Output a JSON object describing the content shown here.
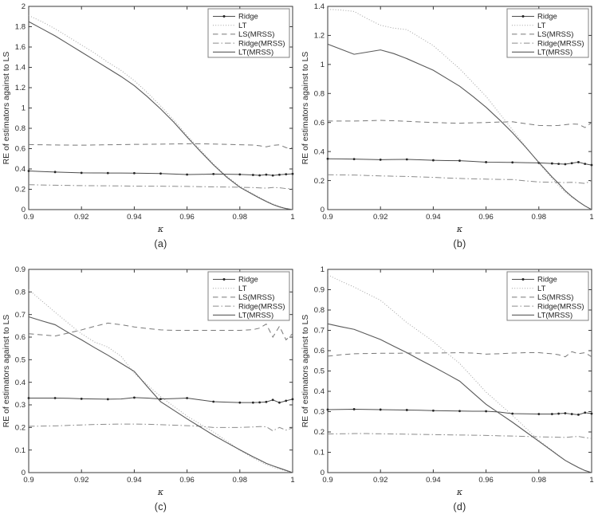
{
  "figure": {
    "background": "#ffffff",
    "axis_color": "#3a3a3a",
    "text_color": "#2b2b2b",
    "legend_border_color": "#808080",
    "legend_background": "#ffffff"
  },
  "chart_data": [
    {
      "id": "a",
      "caption": "(a)",
      "type": "line",
      "title": "",
      "xlabel": "κ",
      "ylabel": "RE of estimators against to LS",
      "xlim": [
        0.9,
        1.0
      ],
      "ylim": [
        0,
        2
      ],
      "xticks": [
        0.9,
        0.92,
        0.94,
        0.96,
        0.98,
        1
      ],
      "yticks": [
        0,
        0.2,
        0.4,
        0.6,
        0.8,
        1,
        1.2,
        1.4,
        1.6,
        1.8,
        2
      ],
      "grid": false,
      "legend_position": "top-right",
      "x": [
        0.9,
        0.905,
        0.91,
        0.915,
        0.92,
        0.925,
        0.93,
        0.935,
        0.94,
        0.945,
        0.95,
        0.955,
        0.96,
        0.965,
        0.97,
        0.975,
        0.98,
        0.985,
        0.9875,
        0.99,
        0.9925,
        0.995,
        0.9975,
        1
      ],
      "series": [
        {
          "name": "Ridge",
          "style": "solid-marker",
          "color": "#4d4d4d",
          "marker_color": "#262626",
          "values": [
            0.38,
            0.375,
            0.37,
            0.366,
            0.362,
            0.361,
            0.36,
            0.36,
            0.359,
            0.357,
            0.355,
            0.35,
            0.345,
            0.347,
            0.35,
            0.348,
            0.346,
            0.341,
            0.337,
            0.344,
            0.336,
            0.343,
            0.348,
            0.352
          ]
        },
        {
          "name": "LT",
          "style": "dotted",
          "color": "#a3a3a3",
          "values": [
            1.91,
            1.85,
            1.78,
            1.7,
            1.62,
            1.54,
            1.45,
            1.37,
            1.27,
            1.15,
            1.02,
            0.88,
            0.73,
            0.59,
            0.45,
            0.33,
            0.23,
            0.155,
            0.12,
            0.085,
            0.055,
            0.03,
            0.012,
            0.0
          ]
        },
        {
          "name": "LS(MRSS)",
          "style": "dashed",
          "color": "#787878",
          "values": [
            0.64,
            0.638,
            0.636,
            0.635,
            0.634,
            0.636,
            0.638,
            0.64,
            0.642,
            0.643,
            0.644,
            0.646,
            0.648,
            0.648,
            0.645,
            0.642,
            0.638,
            0.635,
            0.628,
            0.618,
            0.632,
            0.638,
            0.61,
            0.605
          ]
        },
        {
          "name": "Ridge(MRSS)",
          "style": "dashdot",
          "color": "#8c8c8c",
          "values": [
            0.245,
            0.242,
            0.24,
            0.238,
            0.236,
            0.235,
            0.234,
            0.233,
            0.231,
            0.23,
            0.23,
            0.229,
            0.228,
            0.226,
            0.224,
            0.222,
            0.22,
            0.217,
            0.214,
            0.211,
            0.218,
            0.215,
            0.207,
            0.204
          ]
        },
        {
          "name": "LT(MRSS)",
          "style": "solid",
          "color": "#595959",
          "values": [
            1.85,
            1.78,
            1.71,
            1.63,
            1.55,
            1.47,
            1.39,
            1.31,
            1.22,
            1.11,
            0.99,
            0.86,
            0.715,
            0.575,
            0.44,
            0.32,
            0.22,
            0.148,
            0.113,
            0.08,
            0.05,
            0.027,
            0.01,
            0.0
          ]
        }
      ]
    },
    {
      "id": "b",
      "caption": "(b)",
      "type": "line",
      "title": "",
      "xlabel": "κ",
      "ylabel": "RE of estimators against to LS",
      "xlim": [
        0.9,
        1.0
      ],
      "ylim": [
        0,
        1.4
      ],
      "xticks": [
        0.9,
        0.92,
        0.94,
        0.96,
        0.98,
        1
      ],
      "yticks": [
        0,
        0.2,
        0.4,
        0.6,
        0.8,
        1,
        1.2,
        1.4
      ],
      "grid": false,
      "legend_position": "top-right",
      "x": [
        0.9,
        0.905,
        0.91,
        0.915,
        0.92,
        0.925,
        0.93,
        0.935,
        0.94,
        0.945,
        0.95,
        0.955,
        0.96,
        0.965,
        0.97,
        0.975,
        0.98,
        0.985,
        0.9875,
        0.99,
        0.9925,
        0.995,
        0.9975,
        1
      ],
      "series": [
        {
          "name": "Ridge",
          "style": "solid-marker",
          "color": "#4d4d4d",
          "marker_color": "#262626",
          "values": [
            0.35,
            0.349,
            0.348,
            0.346,
            0.344,
            0.345,
            0.346,
            0.343,
            0.34,
            0.338,
            0.337,
            0.332,
            0.327,
            0.326,
            0.325,
            0.323,
            0.322,
            0.318,
            0.315,
            0.313,
            0.32,
            0.327,
            0.315,
            0.307
          ]
        },
        {
          "name": "LT",
          "style": "dotted",
          "color": "#a3a3a3",
          "values": [
            1.38,
            1.375,
            1.365,
            1.315,
            1.27,
            1.25,
            1.24,
            1.185,
            1.13,
            1.05,
            0.97,
            0.875,
            0.78,
            0.665,
            0.55,
            0.435,
            0.32,
            0.215,
            0.165,
            0.12,
            0.085,
            0.055,
            0.025,
            0.0
          ]
        },
        {
          "name": "LS(MRSS)",
          "style": "dashed",
          "color": "#787878",
          "values": [
            0.61,
            0.61,
            0.61,
            0.612,
            0.615,
            0.612,
            0.608,
            0.604,
            0.6,
            0.597,
            0.595,
            0.598,
            0.6,
            0.603,
            0.605,
            0.592,
            0.58,
            0.578,
            0.58,
            0.585,
            0.59,
            0.588,
            0.565,
            0.6
          ]
        },
        {
          "name": "Ridge(MRSS)",
          "style": "dashdot",
          "color": "#8c8c8c",
          "values": [
            0.24,
            0.239,
            0.238,
            0.235,
            0.232,
            0.23,
            0.228,
            0.225,
            0.222,
            0.218,
            0.215,
            0.212,
            0.21,
            0.208,
            0.207,
            0.198,
            0.19,
            0.188,
            0.187,
            0.186,
            0.188,
            0.185,
            0.18,
            0.2
          ]
        },
        {
          "name": "LT(MRSS)",
          "style": "solid",
          "color": "#595959",
          "values": [
            1.14,
            1.105,
            1.07,
            1.085,
            1.1,
            1.075,
            1.04,
            1.0,
            0.96,
            0.905,
            0.85,
            0.78,
            0.705,
            0.62,
            0.53,
            0.43,
            0.325,
            0.225,
            0.18,
            0.13,
            0.09,
            0.055,
            0.025,
            0.0
          ]
        }
      ]
    },
    {
      "id": "c",
      "caption": "(c)",
      "type": "line",
      "title": "",
      "xlabel": "κ",
      "ylabel": "RE of estimators against to LS",
      "xlim": [
        0.9,
        1.0
      ],
      "ylim": [
        0,
        0.9
      ],
      "xticks": [
        0.9,
        0.92,
        0.94,
        0.96,
        0.98,
        1
      ],
      "yticks": [
        0,
        0.1,
        0.2,
        0.3,
        0.4,
        0.5,
        0.6,
        0.7,
        0.8,
        0.9
      ],
      "grid": false,
      "legend_position": "top-right",
      "x": [
        0.9,
        0.905,
        0.91,
        0.915,
        0.92,
        0.925,
        0.93,
        0.935,
        0.94,
        0.945,
        0.95,
        0.955,
        0.96,
        0.965,
        0.97,
        0.975,
        0.98,
        0.985,
        0.9875,
        0.99,
        0.9925,
        0.995,
        0.9975,
        1
      ],
      "series": [
        {
          "name": "Ridge",
          "style": "solid-marker",
          "color": "#4d4d4d",
          "marker_color": "#262626",
          "values": [
            0.33,
            0.33,
            0.33,
            0.329,
            0.327,
            0.326,
            0.325,
            0.326,
            0.332,
            0.33,
            0.326,
            0.328,
            0.33,
            0.322,
            0.314,
            0.312,
            0.31,
            0.31,
            0.311,
            0.313,
            0.322,
            0.31,
            0.318,
            0.325
          ]
        },
        {
          "name": "LT",
          "style": "dotted",
          "color": "#a3a3a3",
          "values": [
            0.81,
            0.76,
            0.71,
            0.662,
            0.615,
            0.578,
            0.556,
            0.515,
            0.44,
            0.388,
            0.337,
            0.293,
            0.25,
            0.215,
            0.18,
            0.14,
            0.099,
            0.065,
            0.05,
            0.035,
            0.024,
            0.015,
            0.007,
            0.0
          ]
        },
        {
          "name": "LS(MRSS)",
          "style": "dashed",
          "color": "#787878",
          "values": [
            0.615,
            0.61,
            0.605,
            0.618,
            0.632,
            0.648,
            0.662,
            0.655,
            0.645,
            0.638,
            0.632,
            0.63,
            0.63,
            0.63,
            0.63,
            0.63,
            0.63,
            0.633,
            0.64,
            0.658,
            0.6,
            0.648,
            0.588,
            0.615
          ]
        },
        {
          "name": "Ridge(MRSS)",
          "style": "dashdot",
          "color": "#8c8c8c",
          "values": [
            0.205,
            0.206,
            0.207,
            0.209,
            0.211,
            0.213,
            0.214,
            0.215,
            0.215,
            0.214,
            0.212,
            0.21,
            0.208,
            0.205,
            0.2,
            0.2,
            0.2,
            0.202,
            0.204,
            0.203,
            0.185,
            0.2,
            0.188,
            0.198
          ]
        },
        {
          "name": "LT(MRSS)",
          "style": "solid",
          "color": "#595959",
          "values": [
            0.69,
            0.672,
            0.655,
            0.62,
            0.588,
            0.553,
            0.52,
            0.484,
            0.448,
            0.38,
            0.314,
            0.276,
            0.238,
            0.202,
            0.166,
            0.133,
            0.101,
            0.07,
            0.056,
            0.041,
            0.03,
            0.02,
            0.01,
            0.0
          ]
        }
      ]
    },
    {
      "id": "d",
      "caption": "(d)",
      "type": "line",
      "title": "",
      "xlabel": "κ",
      "ylabel": "RE of estimators against to LS",
      "xlim": [
        0.9,
        1.0
      ],
      "ylim": [
        0,
        1
      ],
      "xticks": [
        0.9,
        0.92,
        0.94,
        0.96,
        0.98,
        1
      ],
      "yticks": [
        0,
        0.1,
        0.2,
        0.3,
        0.4,
        0.5,
        0.6,
        0.7,
        0.8,
        0.9,
        1
      ],
      "grid": false,
      "legend_position": "top-right",
      "x": [
        0.9,
        0.905,
        0.91,
        0.915,
        0.92,
        0.925,
        0.93,
        0.935,
        0.94,
        0.945,
        0.95,
        0.955,
        0.96,
        0.965,
        0.97,
        0.975,
        0.98,
        0.985,
        0.9875,
        0.99,
        0.9925,
        0.995,
        0.9975,
        1
      ],
      "series": [
        {
          "name": "Ridge",
          "style": "solid-marker",
          "color": "#4d4d4d",
          "marker_color": "#262626",
          "values": [
            0.31,
            0.311,
            0.312,
            0.311,
            0.31,
            0.309,
            0.308,
            0.307,
            0.305,
            0.304,
            0.303,
            0.302,
            0.302,
            0.298,
            0.29,
            0.289,
            0.288,
            0.288,
            0.29,
            0.292,
            0.288,
            0.285,
            0.295,
            0.29
          ]
        },
        {
          "name": "LT",
          "style": "dotted",
          "color": "#a3a3a3",
          "values": [
            0.973,
            0.942,
            0.913,
            0.88,
            0.848,
            0.793,
            0.738,
            0.692,
            0.645,
            0.59,
            0.537,
            0.467,
            0.396,
            0.339,
            0.282,
            0.22,
            0.158,
            0.11,
            0.085,
            0.06,
            0.042,
            0.025,
            0.01,
            0.0
          ]
        },
        {
          "name": "LS(MRSS)",
          "style": "dashed",
          "color": "#787878",
          "values": [
            0.573,
            0.58,
            0.585,
            0.586,
            0.587,
            0.587,
            0.588,
            0.588,
            0.588,
            0.589,
            0.59,
            0.588,
            0.583,
            0.585,
            0.588,
            0.59,
            0.59,
            0.585,
            0.58,
            0.57,
            0.595,
            0.585,
            0.59,
            0.57
          ]
        },
        {
          "name": "Ridge(MRSS)",
          "style": "dashdot",
          "color": "#8c8c8c",
          "values": [
            0.19,
            0.191,
            0.192,
            0.192,
            0.191,
            0.19,
            0.189,
            0.188,
            0.187,
            0.186,
            0.185,
            0.184,
            0.183,
            0.181,
            0.18,
            0.178,
            0.176,
            0.175,
            0.174,
            0.173,
            0.176,
            0.178,
            0.172,
            0.168
          ]
        },
        {
          "name": "LT(MRSS)",
          "style": "solid",
          "color": "#595959",
          "values": [
            0.732,
            0.718,
            0.705,
            0.68,
            0.655,
            0.622,
            0.59,
            0.555,
            0.521,
            0.486,
            0.45,
            0.393,
            0.336,
            0.292,
            0.248,
            0.201,
            0.154,
            0.107,
            0.083,
            0.06,
            0.042,
            0.025,
            0.01,
            0.0
          ]
        }
      ]
    }
  ]
}
